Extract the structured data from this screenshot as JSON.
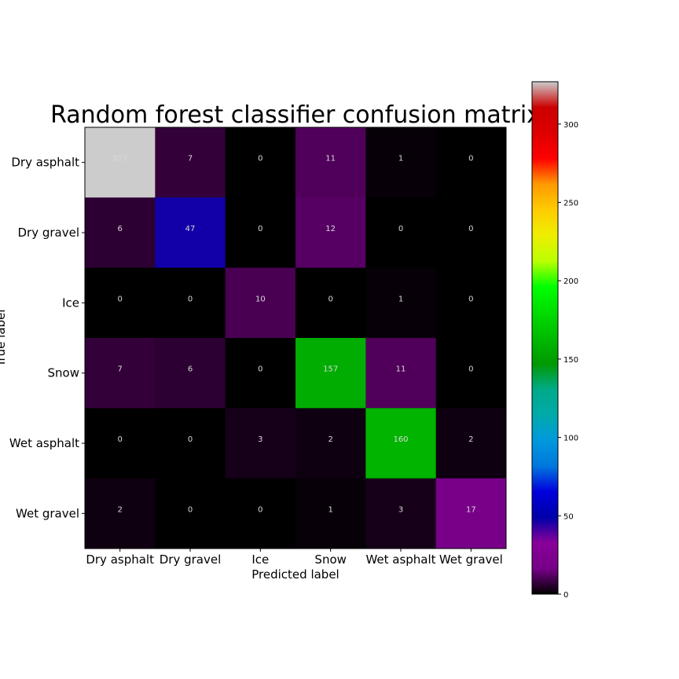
{
  "chart_data": {
    "type": "heatmap",
    "title": "Random forest classifier confusion matrix",
    "xlabel": "Predicted label",
    "ylabel": "True label",
    "x_categories": [
      "Dry asphalt",
      "Dry gravel",
      "Ice",
      "Snow",
      "Wet asphalt",
      "Wet gravel"
    ],
    "y_categories": [
      "Dry asphalt",
      "Dry gravel",
      "Ice",
      "Snow",
      "Wet asphalt",
      "Wet gravel"
    ],
    "matrix": [
      [
        327,
        7,
        0,
        11,
        1,
        0
      ],
      [
        6,
        47,
        0,
        12,
        0,
        0
      ],
      [
        0,
        0,
        10,
        0,
        1,
        0
      ],
      [
        7,
        6,
        0,
        157,
        11,
        0
      ],
      [
        0,
        0,
        3,
        2,
        160,
        2
      ],
      [
        2,
        0,
        0,
        1,
        3,
        17
      ]
    ],
    "colormap": "nipy_spectral",
    "value_range": [
      0,
      327
    ],
    "colorbar": {
      "ticks": [
        0,
        50,
        100,
        150,
        200,
        250,
        300
      ]
    },
    "cell_text_color": "#d9d9d9"
  }
}
